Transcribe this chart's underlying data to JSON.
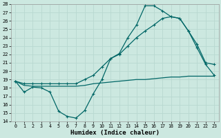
{
  "xlabel": "Humidex (Indice chaleur)",
  "xlim": [
    -0.5,
    23.5
  ],
  "ylim": [
    14,
    28
  ],
  "yticks": [
    14,
    15,
    16,
    17,
    18,
    19,
    20,
    21,
    22,
    23,
    24,
    25,
    26,
    27,
    28
  ],
  "xticks": [
    0,
    1,
    2,
    3,
    4,
    5,
    6,
    7,
    8,
    9,
    10,
    11,
    12,
    13,
    14,
    15,
    16,
    17,
    18,
    19,
    20,
    21,
    22,
    23
  ],
  "bg_color": "#cce8e0",
  "grid_color": "#b8d8d0",
  "line_color": "#006666",
  "line1_x": [
    0,
    1,
    2,
    3,
    4,
    5,
    6,
    7,
    8,
    9,
    10,
    11,
    12,
    13,
    14,
    15,
    16,
    17,
    18,
    19,
    20,
    21,
    22,
    23
  ],
  "line1_y": [
    18.8,
    17.5,
    18.1,
    18.0,
    17.5,
    15.2,
    14.6,
    14.4,
    15.3,
    17.3,
    19.0,
    21.5,
    22.1,
    24.0,
    25.5,
    27.8,
    27.8,
    27.2,
    26.5,
    26.3,
    24.8,
    22.8,
    20.8,
    19.5
  ],
  "line2_x": [
    0,
    1,
    2,
    3,
    4,
    5,
    6,
    7,
    8,
    9,
    10,
    11,
    12,
    13,
    14,
    15,
    16,
    17,
    18,
    19,
    20,
    21,
    22,
    23
  ],
  "line2_y": [
    18.8,
    18.5,
    18.5,
    18.5,
    18.5,
    18.5,
    18.5,
    18.5,
    19.0,
    19.5,
    20.5,
    21.5,
    22.0,
    23.0,
    24.0,
    24.8,
    25.5,
    26.3,
    26.5,
    26.3,
    24.8,
    23.2,
    21.0,
    20.8
  ],
  "line3_x": [
    0,
    1,
    2,
    3,
    4,
    5,
    6,
    7,
    8,
    9,
    10,
    11,
    12,
    13,
    14,
    15,
    16,
    17,
    18,
    19,
    20,
    21,
    22,
    23
  ],
  "line3_y": [
    18.8,
    18.3,
    18.2,
    18.2,
    18.2,
    18.2,
    18.2,
    18.2,
    18.3,
    18.5,
    18.6,
    18.7,
    18.8,
    18.9,
    19.0,
    19.0,
    19.1,
    19.2,
    19.3,
    19.3,
    19.4,
    19.4,
    19.4,
    19.4
  ]
}
